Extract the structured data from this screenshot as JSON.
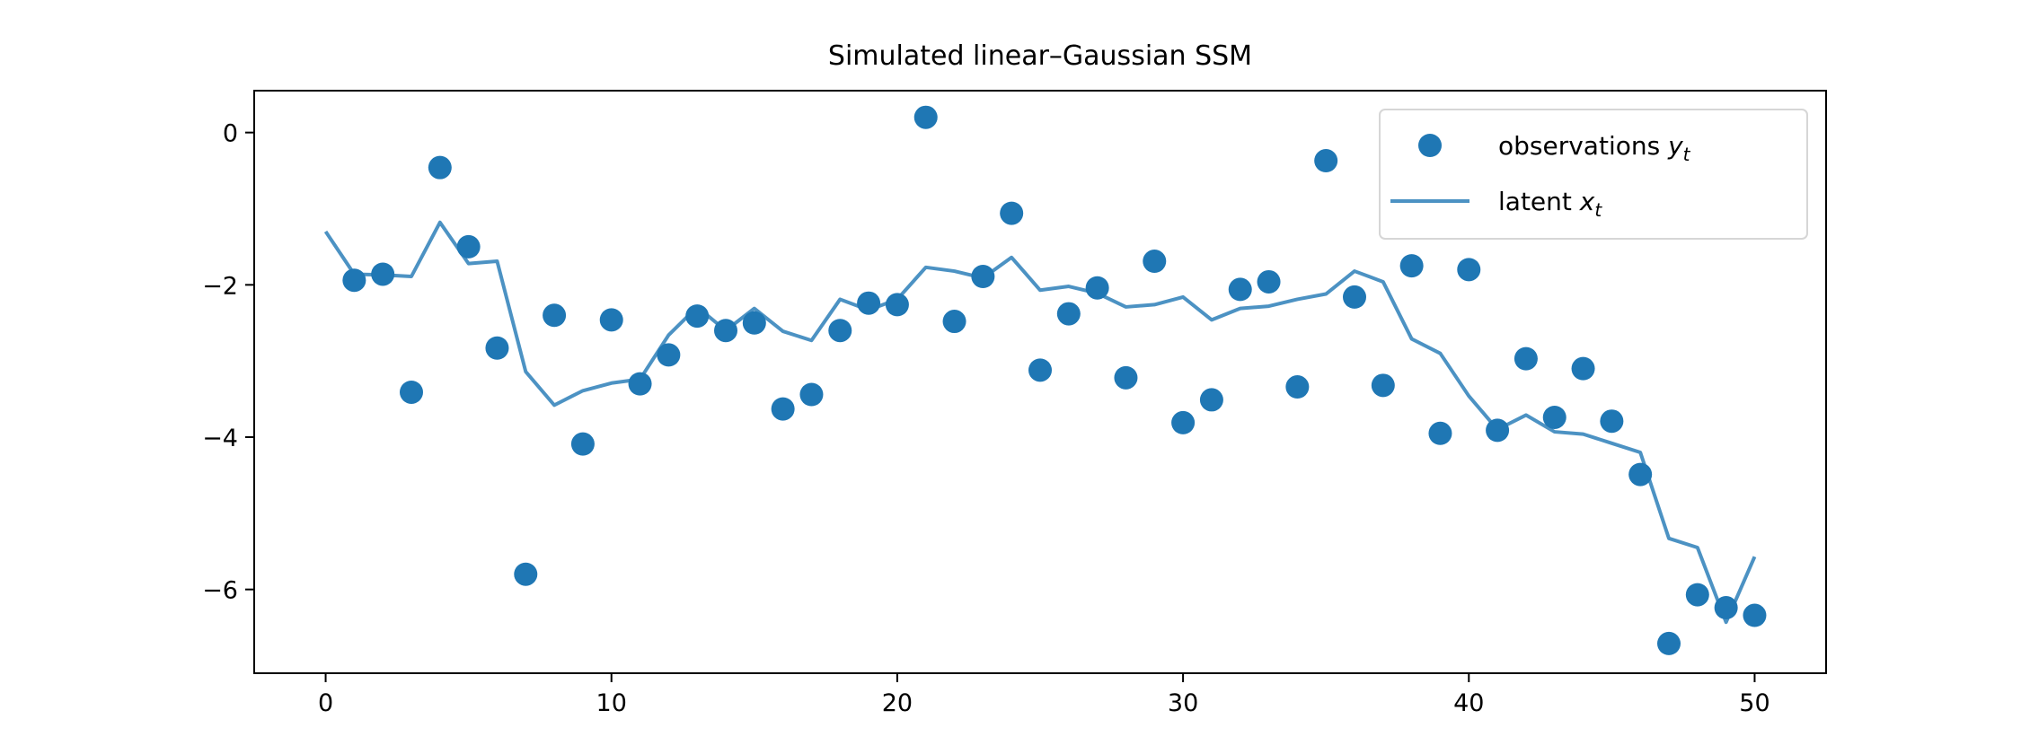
{
  "chart_data": {
    "type": "scatter+line",
    "title": "Simulated linear–Gaussian SSM",
    "xlabel": "t",
    "ylabel": "",
    "xlim": [
      -2.5,
      52.5
    ],
    "ylim": [
      -7.1,
      0.55
    ],
    "xticks": [
      0,
      10,
      20,
      30,
      40,
      50
    ],
    "yticks": [
      0,
      -2,
      -4,
      -6
    ],
    "ytick_labels": [
      "0",
      "−2",
      "−4",
      "−6"
    ],
    "grid": false,
    "legend_position": "top-right",
    "colors": {
      "observations": "#1f77b4",
      "latent": "#1f77b4"
    },
    "series": [
      {
        "name": "observations y_t",
        "legend_text": "observations ",
        "legend_sub": "y",
        "legend_subscript": "t",
        "type": "scatter",
        "x": [
          1,
          2,
          3,
          4,
          5,
          6,
          7,
          8,
          9,
          10,
          11,
          12,
          13,
          14,
          15,
          16,
          17,
          18,
          19,
          20,
          21,
          22,
          23,
          24,
          25,
          26,
          27,
          28,
          29,
          30,
          31,
          32,
          33,
          34,
          35,
          36,
          37,
          38,
          39,
          40,
          41,
          42,
          43,
          44,
          45,
          46,
          47,
          48,
          49,
          50
        ],
        "y": [
          -1.94,
          -1.86,
          -3.41,
          -0.46,
          -1.5,
          -2.83,
          -5.8,
          -2.4,
          -4.09,
          -2.46,
          -3.3,
          -2.92,
          -2.41,
          -2.6,
          -2.5,
          -3.63,
          -3.44,
          -2.6,
          -2.24,
          -2.26,
          0.2,
          -2.48,
          -1.89,
          -1.06,
          -3.12,
          -2.38,
          -2.04,
          -3.22,
          -1.69,
          -3.81,
          -3.51,
          -2.06,
          -1.96,
          -3.34,
          -0.37,
          -2.16,
          -3.32,
          -1.75,
          -3.95,
          -1.8,
          -3.91,
          -2.97,
          -3.74,
          -3.1,
          -3.79,
          -4.49,
          -6.71,
          -6.07,
          -6.24,
          -6.34
        ]
      },
      {
        "name": "latent x_t",
        "legend_text": "latent ",
        "legend_sub": "x",
        "legend_subscript": "t",
        "type": "line",
        "x": [
          0,
          1,
          2,
          3,
          4,
          5,
          6,
          7,
          8,
          9,
          10,
          11,
          12,
          13,
          14,
          15,
          16,
          17,
          18,
          19,
          20,
          21,
          22,
          23,
          24,
          25,
          26,
          27,
          28,
          29,
          30,
          31,
          32,
          33,
          34,
          35,
          36,
          37,
          38,
          39,
          40,
          41,
          42,
          43,
          44,
          45,
          46,
          47,
          48,
          49,
          50
        ],
        "y": [
          -1.3,
          -1.86,
          -1.87,
          -1.89,
          -1.18,
          -1.72,
          -1.69,
          -3.14,
          -3.58,
          -3.39,
          -3.29,
          -3.24,
          -2.66,
          -2.29,
          -2.6,
          -2.31,
          -2.61,
          -2.73,
          -2.19,
          -2.33,
          -2.19,
          -1.77,
          -1.82,
          -1.91,
          -1.64,
          -2.07,
          -2.02,
          -2.11,
          -2.29,
          -2.26,
          -2.16,
          -2.46,
          -2.31,
          -2.28,
          -2.19,
          -2.12,
          -1.82,
          -1.96,
          -2.71,
          -2.9,
          -3.46,
          -3.9,
          -3.71,
          -3.93,
          -3.96,
          -4.08,
          -4.2,
          -5.33,
          -5.45,
          -6.43,
          -5.57
        ]
      }
    ]
  }
}
